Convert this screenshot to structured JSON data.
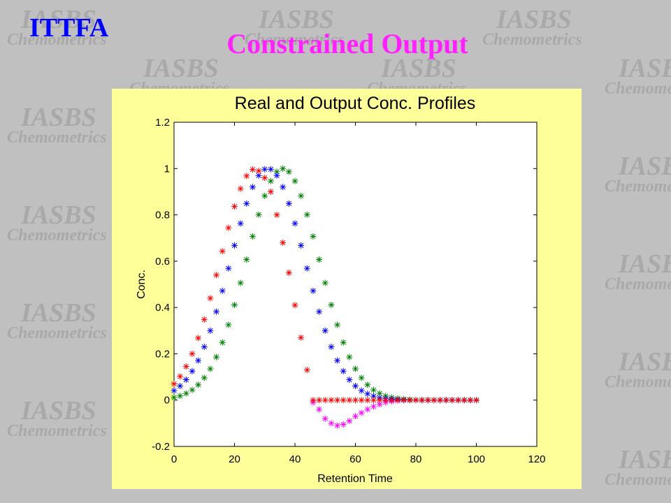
{
  "slide": {
    "label": "ITTFA",
    "title": "Constrained Output"
  },
  "watermark": {
    "logo": "IASBS",
    "subtitle": "Chemometrics"
  },
  "chart_data": {
    "type": "scatter",
    "title": "Real and Output Conc. Profiles",
    "x_label": "Retention Time",
    "y_label": "Conc.",
    "marker": "asterisk",
    "grid": false,
    "xlim": [
      0,
      120
    ],
    "xticks": [
      0,
      20,
      40,
      60,
      80,
      100,
      120
    ],
    "ylim": [
      -0.2,
      1.2
    ],
    "yticks": [
      -0.2,
      0,
      0.2,
      0.4,
      0.6,
      0.8,
      1,
      1.2
    ],
    "x": [
      0,
      2,
      4,
      6,
      8,
      10,
      12,
      14,
      16,
      18,
      20,
      22,
      24,
      26,
      28,
      30,
      32,
      34,
      36,
      38,
      40,
      42,
      44,
      46,
      48,
      50,
      52,
      54,
      56,
      58,
      60,
      62,
      64,
      66,
      68,
      70,
      72,
      74,
      76,
      78,
      80,
      82,
      84,
      86,
      88,
      90,
      92,
      94,
      96,
      98,
      100
    ],
    "series": [
      {
        "color": "#ff00ff",
        "values": [
          null,
          null,
          null,
          null,
          null,
          null,
          null,
          null,
          null,
          null,
          null,
          null,
          null,
          null,
          null,
          null,
          null,
          null,
          null,
          null,
          null,
          null,
          null,
          -0.01,
          -0.04,
          -0.08,
          -0.1,
          -0.11,
          -0.105,
          -0.09,
          -0.07,
          -0.055,
          -0.04,
          -0.028,
          -0.018,
          -0.01,
          -0.005,
          -0.002,
          0,
          null,
          null,
          null,
          null,
          null,
          null,
          null,
          null,
          null,
          null,
          null,
          null
        ]
      },
      {
        "color": "#008000",
        "values": [
          0.011,
          0.018,
          0.029,
          0.044,
          0.066,
          0.096,
          0.135,
          0.186,
          0.249,
          0.325,
          0.411,
          0.506,
          0.607,
          0.707,
          0.801,
          0.882,
          0.946,
          0.986,
          1,
          0.986,
          0.946,
          0.882,
          0.801,
          0.707,
          0.607,
          0.506,
          0.411,
          0.325,
          0.249,
          0.186,
          0.135,
          0.096,
          0.066,
          0.044,
          0.029,
          0.018,
          0.011,
          0.007,
          0.004,
          0.002,
          0.001,
          0,
          0,
          0,
          0,
          0,
          0,
          0,
          0,
          0,
          0
        ]
      },
      {
        "color": "#0000ff",
        "values": [
          0.041,
          0.061,
          0.088,
          0.125,
          0.171,
          0.23,
          0.3,
          0.382,
          0.472,
          0.569,
          0.668,
          0.763,
          0.849,
          0.92,
          0.97,
          0.997,
          0.997,
          0.97,
          0.92,
          0.849,
          0.763,
          0.668,
          0.569,
          0.472,
          0.382,
          0.3,
          0.23,
          0.171,
          0.125,
          0.088,
          0.061,
          0.041,
          0.027,
          0.017,
          0.01,
          0.006,
          0.004,
          0.002,
          0.001,
          0,
          0,
          0,
          0,
          0,
          0,
          0,
          0,
          0,
          0,
          0,
          0
        ]
      },
      {
        "color": "#ff0000",
        "values": [
          0.07,
          0.102,
          0.145,
          0.2,
          0.268,
          0.348,
          0.44,
          0.54,
          0.643,
          0.744,
          0.836,
          0.913,
          0.968,
          0.996,
          0.99,
          0.96,
          0.9,
          0.8,
          0.68,
          0.55,
          0.41,
          0.27,
          0.13,
          0,
          0,
          0,
          0,
          0,
          0,
          0,
          0,
          0,
          0,
          0,
          0,
          0,
          0,
          0,
          0,
          0,
          0,
          0,
          0,
          0,
          0,
          0,
          0,
          0,
          0,
          0,
          0
        ]
      }
    ]
  }
}
